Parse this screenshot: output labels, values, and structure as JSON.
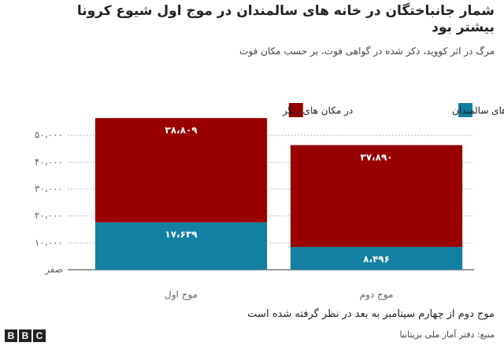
{
  "chart_data": {
    "type": "stacked_bar",
    "title": "شمار جانباختگان در خانه های  سالمندان در موج اول شیوع کرونا بیشتر بود",
    "subtitle": "مرگ در اثر کووید، ذکر شده در گواهی فوت، بر حسب مکان فوت",
    "categories": [
      "موج اول",
      "موج دوم"
    ],
    "series": [
      {
        "name": "در خانه های سالمندان",
        "color": "#1380a1",
        "values": [
          17639,
          8496
        ],
        "value_labels": [
          "۱۷،۶۳۹",
          "۸،۴۹۶"
        ]
      },
      {
        "name": "در مکان های دیگر",
        "color": "#990000",
        "values": [
          38809,
          37890
        ],
        "value_labels": [
          "۳۸،۸۰۹",
          "۳۷،۸۹۰"
        ]
      }
    ],
    "ylim": [
      0,
      60000
    ],
    "yticks": [
      {
        "value": 0,
        "label": "صفر"
      },
      {
        "value": 10000,
        "label": "۱۰،۰۰۰"
      },
      {
        "value": 20000,
        "label": "۲۰،۰۰۰"
      },
      {
        "value": 30000,
        "label": "۳۰،۰۰۰"
      },
      {
        "value": 40000,
        "label": "۴۰،۰۰۰"
      },
      {
        "value": 50000,
        "label": "۵۰،۰۰۰"
      }
    ],
    "grid": true,
    "note": "موج دوم از چهارم سپتامبر به بعد در نظر گرفته شده است",
    "source": "منبع: دفتر آمار ملی بریتانیا",
    "logo": [
      "B",
      "B",
      "C"
    ]
  }
}
